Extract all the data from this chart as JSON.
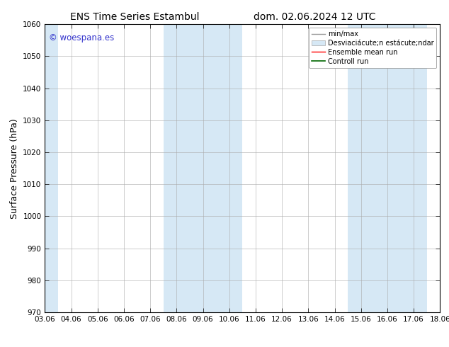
{
  "title_left": "ENS Time Series Estambul",
  "title_right": "dom. 02.06.2024 12 UTC",
  "ylabel": "Surface Pressure (hPa)",
  "ylim": [
    970,
    1060
  ],
  "yticks": [
    970,
    980,
    990,
    1000,
    1010,
    1020,
    1030,
    1040,
    1050,
    1060
  ],
  "xtick_labels": [
    "03.06",
    "04.06",
    "05.06",
    "06.06",
    "07.06",
    "08.06",
    "09.06",
    "10.06",
    "11.06",
    "12.06",
    "13.06",
    "14.06",
    "15.06",
    "16.06",
    "17.06",
    "18.06"
  ],
  "shaded_color": "#d6e8f5",
  "watermark_text": "© woespana.es",
  "watermark_color": "#3333cc",
  "bg_color": "#ffffff",
  "axes_bg_color": "#ffffff",
  "grid_color": "#aaaaaa",
  "title_fontsize": 10,
  "tick_fontsize": 7.5,
  "label_fontsize": 9,
  "legend_fontsize": 7
}
